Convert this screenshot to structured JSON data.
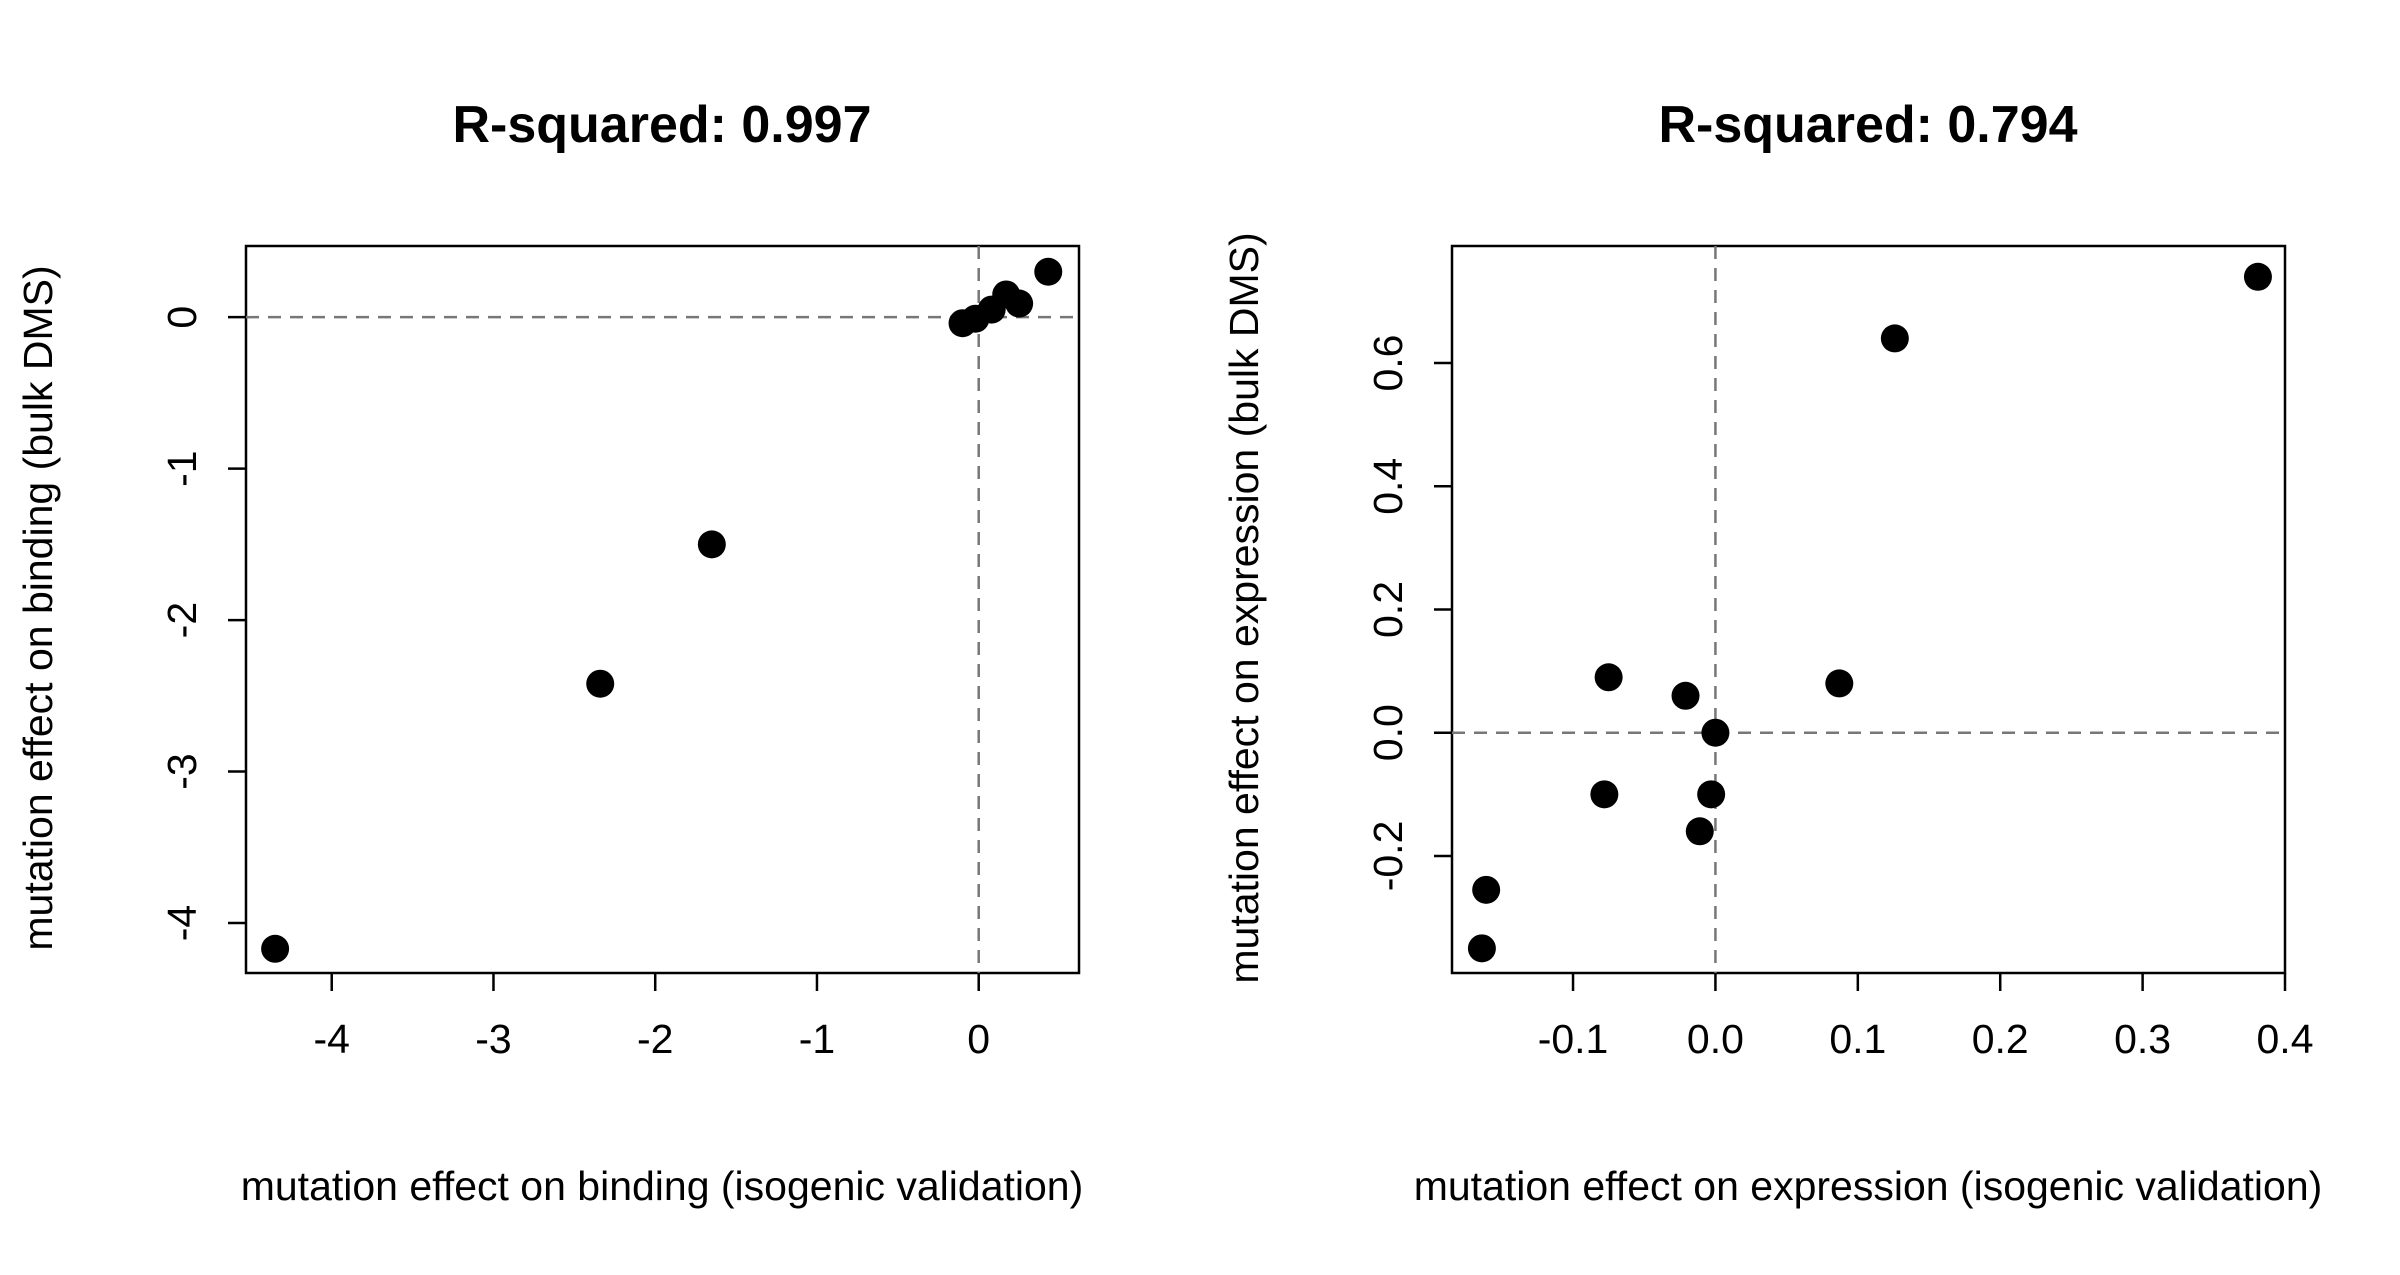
{
  "chart_data": [
    {
      "type": "scatter",
      "title": "R-squared: 0.997",
      "xlabel": "mutation effect on binding (isogenic validation)",
      "ylabel": "mutation effect on binding (bulk DMS)",
      "xlim": [
        -4.53,
        0.62
      ],
      "ylim": [
        -4.33,
        0.47
      ],
      "xticks": [
        -4,
        -3,
        -2,
        -1,
        0
      ],
      "yticks": [
        -4,
        -3,
        -2,
        -1,
        0
      ],
      "xtick_labels": [
        "-4",
        "-3",
        "-2",
        "-1",
        "0"
      ],
      "ytick_labels": [
        "-4",
        "-3",
        "-2",
        "-1",
        "0"
      ],
      "ref_lines": {
        "x": 0,
        "y": 0
      },
      "grid": false,
      "points": [
        {
          "x": -4.35,
          "y": -4.17
        },
        {
          "x": -2.34,
          "y": -2.42
        },
        {
          "x": -1.65,
          "y": -1.5
        },
        {
          "x": -0.1,
          "y": -0.04
        },
        {
          "x": -0.02,
          "y": -0.01
        },
        {
          "x": 0.08,
          "y": 0.05
        },
        {
          "x": 0.17,
          "y": 0.15
        },
        {
          "x": 0.25,
          "y": 0.09
        },
        {
          "x": 0.43,
          "y": 0.3
        }
      ]
    },
    {
      "type": "scatter",
      "title": "R-squared: 0.794",
      "xlabel": "mutation effect on expression (isogenic validation)",
      "ylabel": "mutation effect on expression (bulk DMS)",
      "xlim": [
        -0.185,
        0.4
      ],
      "ylim": [
        -0.39,
        0.79
      ],
      "xticks": [
        -0.1,
        0.0,
        0.1,
        0.2,
        0.3,
        0.4
      ],
      "yticks": [
        -0.2,
        0.0,
        0.2,
        0.4,
        0.6
      ],
      "xtick_labels": [
        "-0.1",
        "0.0",
        "0.1",
        "0.2",
        "0.3",
        "0.4"
      ],
      "ytick_labels": [
        "-0.2",
        "0.0",
        "0.2",
        "0.4",
        "0.6"
      ],
      "ref_lines": {
        "x": 0,
        "y": 0
      },
      "grid": false,
      "points": [
        {
          "x": -0.164,
          "y": -0.35
        },
        {
          "x": -0.161,
          "y": -0.255
        },
        {
          "x": -0.078,
          "y": -0.1
        },
        {
          "x": -0.075,
          "y": 0.09
        },
        {
          "x": -0.021,
          "y": 0.06
        },
        {
          "x": -0.011,
          "y": -0.16
        },
        {
          "x": -0.003,
          "y": -0.1
        },
        {
          "x": 0.0,
          "y": 0.0
        },
        {
          "x": 0.087,
          "y": 0.08
        },
        {
          "x": 0.126,
          "y": 0.64
        },
        {
          "x": 0.381,
          "y": 0.74
        }
      ]
    }
  ]
}
